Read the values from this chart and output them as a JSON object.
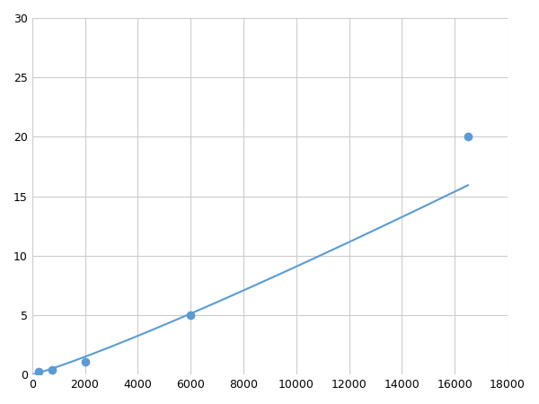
{
  "x_points": [
    250,
    750,
    2000,
    6000,
    16500
  ],
  "y_points": [
    0.2,
    0.4,
    1.1,
    5.0,
    20.0
  ],
  "line_color": "#5b9bd5",
  "marker_color": "#5b9bd5",
  "marker_size": 6,
  "line_width": 1.5,
  "xlim": [
    0,
    18000
  ],
  "ylim": [
    0,
    30
  ],
  "xticks": [
    0,
    2000,
    4000,
    6000,
    8000,
    10000,
    12000,
    14000,
    16000,
    18000
  ],
  "yticks": [
    0,
    5,
    10,
    15,
    20,
    25,
    30
  ],
  "grid_color": "#cccccc",
  "background_color": "#ffffff",
  "tick_fontsize": 9
}
